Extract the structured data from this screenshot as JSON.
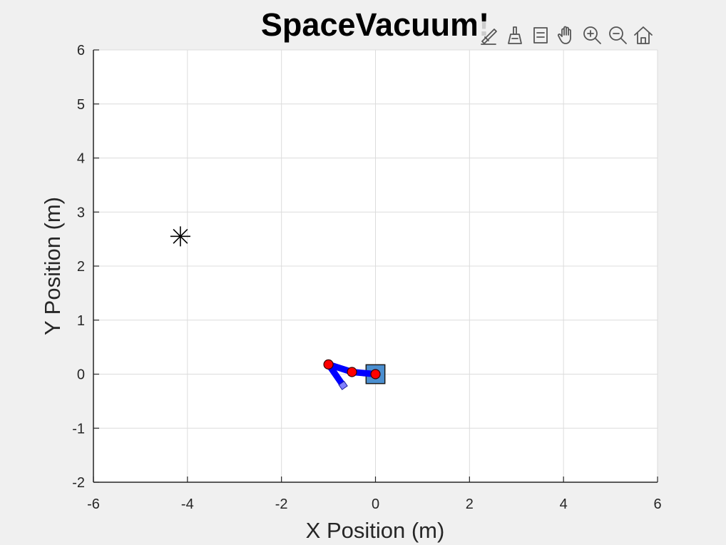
{
  "window": {
    "background": "#f0f0f0"
  },
  "toolbar": {
    "items": [
      {
        "name": "edit-plot-icon"
      },
      {
        "name": "brush-icon"
      },
      {
        "name": "data-tips-icon"
      },
      {
        "name": "pan-hand-icon"
      },
      {
        "name": "zoom-in-icon"
      },
      {
        "name": "zoom-out-icon"
      },
      {
        "name": "home-icon"
      }
    ]
  },
  "chart_data": {
    "type": "scatter",
    "title": "SpaceVacuum!",
    "xlabel": "X Position (m)",
    "ylabel": "Y Position (m)",
    "xlim": [
      -6,
      6
    ],
    "ylim": [
      -2,
      6
    ],
    "xticks": [
      -6,
      -4,
      -2,
      0,
      2,
      4,
      6
    ],
    "yticks": [
      -2,
      -1,
      0,
      1,
      2,
      3,
      4,
      5,
      6
    ],
    "xtick_labels": [
      "-6",
      "-4",
      "-2",
      "0",
      "2",
      "4",
      "6"
    ],
    "ytick_labels": [
      "-2",
      "-1",
      "0",
      "1",
      "2",
      "3",
      "4",
      "5",
      "6"
    ],
    "grid": true,
    "colors": {
      "grid": "#dcdcdc",
      "axis": "#262626",
      "arm": "#0000ff",
      "joint": "#ff0000",
      "base": "#4b8fd0",
      "tool": "#8080ff",
      "target": "#000000"
    },
    "target": {
      "x": -4.15,
      "y": 2.55,
      "marker": "asterisk"
    },
    "base": {
      "x": 0.0,
      "y": 0.0,
      "half_width": 0.2,
      "marker": "square"
    },
    "arm_links": [
      {
        "from": [
          0.0,
          0.0
        ],
        "to": [
          -0.5,
          0.04
        ]
      },
      {
        "from": [
          -0.5,
          0.04
        ],
        "to": [
          -1.0,
          0.18
        ]
      },
      {
        "from": [
          -1.0,
          0.18
        ],
        "to": [
          -0.68,
          -0.22
        ]
      }
    ],
    "joints": [
      {
        "x": 0.0,
        "y": 0.0
      },
      {
        "x": -0.5,
        "y": 0.04
      },
      {
        "x": -1.0,
        "y": 0.18
      }
    ],
    "end_effector": {
      "x": -0.68,
      "y": -0.22
    }
  }
}
